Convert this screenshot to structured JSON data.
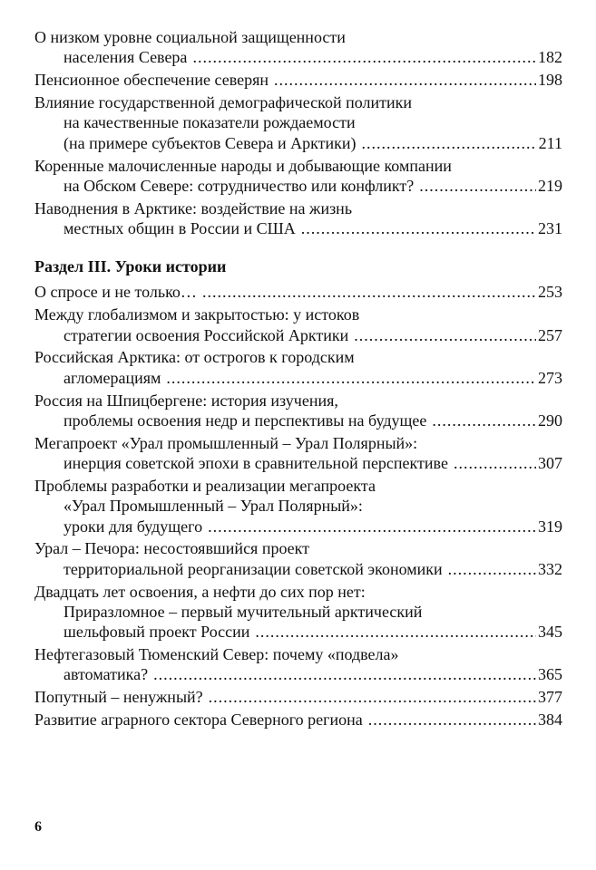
{
  "sections": [
    {
      "heading": "",
      "entries": [
        {
          "lines": [
            "О низком уровне социальной защищенности",
            "населения Севера"
          ],
          "page": "182"
        },
        {
          "lines": [
            "Пенсионное обеспечение северян"
          ],
          "page": "198"
        },
        {
          "lines": [
            "Влияние государственной демографической политики",
            "на качественные показатели рождаемости",
            "(на примере субъектов Севера и Арктики)"
          ],
          "page": "211"
        },
        {
          "lines": [
            "Коренные малочисленные народы и добывающие компании",
            "на Обском Севере: сотрудничество или конфликт?"
          ],
          "page": "219"
        },
        {
          "lines": [
            "Наводнения в Арктике: воздействие на жизнь",
            "местных общин в России и США"
          ],
          "page": "231"
        }
      ]
    },
    {
      "heading": "Раздел III. Уроки истории",
      "entries": [
        {
          "lines": [
            "О спросе и не только…"
          ],
          "page": "253"
        },
        {
          "lines": [
            "Между глобализмом и закрытостью: у истоков",
            "стратегии освоения Российской Арктики"
          ],
          "page": "257"
        },
        {
          "lines": [
            "Российская Арктика: от острогов к городским",
            "агломерациям"
          ],
          "page": "273"
        },
        {
          "lines": [
            "Россия на Шпицбергене: история изучения,",
            "проблемы освоения недр и перспективы на будущее"
          ],
          "page": "290"
        },
        {
          "lines": [
            "Мегапроект «Урал промышленный – Урал Полярный»:",
            "инерция советской эпохи в сравнительной перспективе"
          ],
          "page": "307"
        },
        {
          "lines": [
            "Проблемы разработки и реализации мегапроекта",
            "«Урал Промышленный – Урал Полярный»:",
            "уроки для будущего"
          ],
          "page": "319"
        },
        {
          "lines": [
            "Урал – Печора: несостоявшийся проект",
            "территориальной реорганизации советской экономики"
          ],
          "page": "332"
        },
        {
          "lines": [
            "Двадцать лет освоения, а нефти до сих пор нет:",
            "Приразломное – первый мучительный арктический",
            "шельфовый проект России"
          ],
          "page": "345"
        },
        {
          "lines": [
            "Нефтегазовый Тюменский Север: почему «подвела»",
            "автоматика?"
          ],
          "page": "365"
        },
        {
          "lines": [
            "Попутный – ненужный?"
          ],
          "page": "377"
        },
        {
          "lines": [
            "Развитие аграрного сектора Северного региона"
          ],
          "page": "384"
        }
      ]
    }
  ],
  "page_number": "6"
}
